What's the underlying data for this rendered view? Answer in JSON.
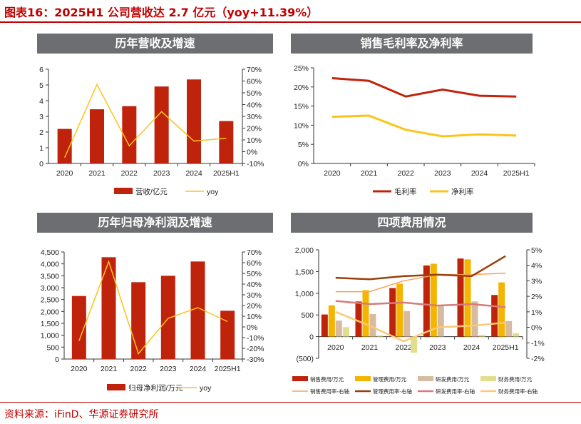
{
  "title": "图表16：2025H1 公司营收达 2.7 亿元（yoy+11.39%）",
  "source": "资料来源：iFinD、华源证券研究所",
  "colors": {
    "red": "#c0230b",
    "yellow": "#fcc419",
    "orange": "#f4b400",
    "tan": "#d7bba0",
    "lime": "#e2df8c",
    "brown": "#9a3f09",
    "pink": "#d87a7a",
    "lightorange": "#f5a25d",
    "peach": "#fbc976"
  },
  "chart_data": [
    {
      "type": "bar+line",
      "title": "历年营收及增速",
      "categories": [
        "2020",
        "2021",
        "2022",
        "2023",
        "2024",
        "2025H1"
      ],
      "series": [
        {
          "name": "营收/亿元",
          "kind": "bar",
          "axis": "left",
          "values": [
            2.2,
            3.45,
            3.65,
            4.9,
            5.35,
            2.7
          ],
          "color": "#c0230b"
        },
        {
          "name": "yoy",
          "kind": "line",
          "axis": "right",
          "values": [
            -5,
            57,
            5,
            34,
            9,
            11.39
          ],
          "color": "#fcc419"
        }
      ],
      "ylim": [
        0,
        6
      ],
      "yticks": [
        "0",
        "1",
        "2",
        "3",
        "4",
        "5",
        "6"
      ],
      "y2lim": [
        -10,
        70
      ],
      "y2ticks": [
        "-10%",
        "0%",
        "10%",
        "20%",
        "30%",
        "40%",
        "50%",
        "60%",
        "70%"
      ]
    },
    {
      "type": "line",
      "title": "销售毛利率及净利率",
      "categories": [
        "2020",
        "2021",
        "2022",
        "2023",
        "2024",
        "2025H1"
      ],
      "series": [
        {
          "name": "毛利率",
          "kind": "line",
          "axis": "left",
          "values": [
            22.3,
            21.6,
            17.5,
            19.3,
            17.7,
            17.5
          ],
          "color": "#c0230b"
        },
        {
          "name": "净利率",
          "kind": "line",
          "axis": "left",
          "values": [
            12.2,
            12.5,
            8.8,
            7.1,
            7.6,
            7.3
          ],
          "color": "#fcc419"
        }
      ],
      "ylim": [
        0,
        25
      ],
      "yticks": [
        "0%",
        "5%",
        "10%",
        "15%",
        "20%",
        "25%"
      ]
    },
    {
      "type": "bar+line",
      "title": "历年归母净利润及增速",
      "categories": [
        "2020",
        "2021",
        "2022",
        "2023",
        "2024",
        "2025H1"
      ],
      "series": [
        {
          "name": "归母净利润/万元",
          "kind": "bar",
          "axis": "left",
          "values": [
            2650,
            4280,
            3230,
            3500,
            4100,
            2030
          ],
          "color": "#c0230b"
        },
        {
          "name": "yoy",
          "kind": "line",
          "axis": "right",
          "values": [
            -13,
            61,
            -25,
            8,
            18,
            5
          ],
          "color": "#fcc419"
        }
      ],
      "ylim": [
        0,
        4500
      ],
      "yticks": [
        "0",
        "500",
        "1,000",
        "1,500",
        "2,000",
        "2,500",
        "3,000",
        "3,500",
        "4,000",
        "4,500"
      ],
      "y2lim": [
        -30,
        70
      ],
      "y2ticks": [
        "-30%",
        "-20%",
        "-10%",
        "0%",
        "10%",
        "20%",
        "30%",
        "40%",
        "50%",
        "60%",
        "70%"
      ]
    },
    {
      "type": "bar+line",
      "title": "四项费用情况",
      "categories": [
        "2020",
        "2021",
        "2022",
        "2023",
        "2024",
        "2025H1"
      ],
      "series": [
        {
          "name": "销售费用/万元",
          "kind": "bar",
          "axis": "left",
          "values": [
            510,
            810,
            1120,
            1640,
            1800,
            960
          ],
          "color": "#c0230b"
        },
        {
          "name": "管理费用/万元",
          "kind": "bar",
          "axis": "left",
          "values": [
            720,
            1070,
            1220,
            1680,
            1780,
            1250
          ],
          "color": "#f4b400"
        },
        {
          "name": "研发费用/万元",
          "kind": "bar",
          "axis": "left",
          "values": [
            370,
            520,
            590,
            700,
            810,
            360
          ],
          "color": "#d7bba0"
        },
        {
          "name": "财务费用/万元",
          "kind": "bar",
          "axis": "left",
          "values": [
            220,
            30,
            -370,
            0,
            40,
            80
          ],
          "color": "#e2df8c"
        },
        {
          "name": "销售费用率-右轴",
          "kind": "line",
          "axis": "right",
          "values": [
            2.3,
            2.3,
            3.0,
            3.4,
            3.4,
            3.5
          ],
          "color": "#f5a25d"
        },
        {
          "name": "管理费用率-右轴",
          "kind": "line",
          "axis": "right",
          "values": [
            3.2,
            3.1,
            3.3,
            3.4,
            3.3,
            4.6
          ],
          "color": "#9a3f09"
        },
        {
          "name": "研发费用率-右轴",
          "kind": "line",
          "axis": "right",
          "values": [
            1.7,
            1.5,
            1.6,
            1.4,
            1.5,
            1.3
          ],
          "color": "#d87a7a"
        },
        {
          "name": "财务费用率-右轴",
          "kind": "line",
          "axis": "right",
          "values": [
            1.0,
            0.1,
            -0.9,
            0.0,
            0.1,
            0.3
          ],
          "color": "#fbc976"
        }
      ],
      "ylim": [
        -500,
        2000
      ],
      "yticks": [
        "(500)",
        "0",
        "500",
        "1,000",
        "1,500",
        "2,000"
      ],
      "y2lim": [
        -2,
        5
      ],
      "y2ticks": [
        "-2%",
        "-1%",
        "0%",
        "1%",
        "2%",
        "3%",
        "4%",
        "5%"
      ]
    }
  ]
}
